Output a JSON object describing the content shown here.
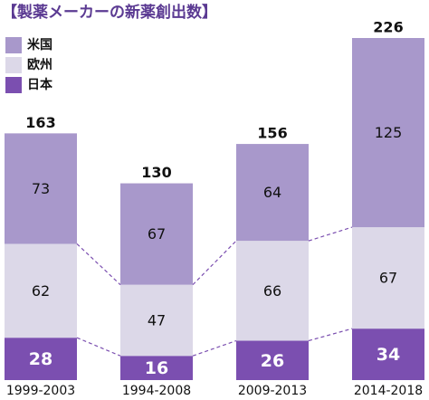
{
  "chart_data": {
    "type": "stacked-bar",
    "title": "【製薬メーカーの新薬創出数】",
    "categories": [
      "1999-2003",
      "1994-2008",
      "2009-2013",
      "2014-2018"
    ],
    "series": [
      {
        "name": "日本",
        "color": "#7b4fb0",
        "values": [
          28,
          16,
          26,
          34
        ]
      },
      {
        "name": "欧州",
        "color": "#dcd8e8",
        "values": [
          62,
          47,
          66,
          67
        ]
      },
      {
        "name": "米国",
        "color": "#a898cb",
        "values": [
          73,
          67,
          64,
          125
        ]
      }
    ],
    "totals": [
      163,
      130,
      156,
      226
    ]
  }
}
